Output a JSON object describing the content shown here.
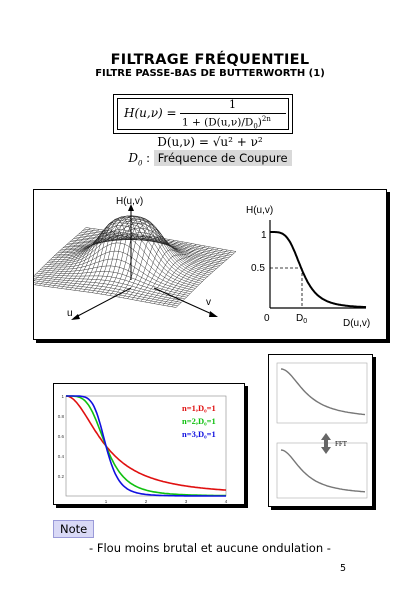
{
  "header": {
    "title": "FILTRAGE FRÉQUENTIEL",
    "subtitle": "FILTRE PASSE-BAS DE BUTTERWORTH (1)"
  },
  "formula": {
    "lhs": "H(u,ν) =",
    "numerator": "1",
    "denominator": "1 + (D(u,ν)/D",
    "den_sub": "0",
    "den_exp": "2n",
    "d_def": "D(u,ν) = √u² + ν²",
    "d0_symbol": "D",
    "d0_sub": "0",
    "d0_colon": ":",
    "d0_label": "Fréquence de Coupure"
  },
  "top_figure": {
    "surface_ylabel": "H(u,v)",
    "surface_u": "u",
    "surface_v": "v",
    "curve_ylabel": "H(u,v)",
    "curve_xlabel": "D(u,v)",
    "tick_1": "1",
    "tick_05": "0.5",
    "tick_0": "0",
    "tick_d0": "D",
    "tick_d0_sub": "0"
  },
  "chart_data": [
    {
      "type": "line",
      "xlim": [
        0,
        4
      ],
      "ylim": [
        0,
        1
      ],
      "x_ticks": [
        "1",
        "2",
        "3",
        "4"
      ],
      "y_ticks": [
        "0.2",
        "0.4",
        "0.6",
        "0.8",
        "1"
      ],
      "series": [
        {
          "name": "n=1,D₀=1",
          "color": "#e01010",
          "order": 1
        },
        {
          "name": "n=2,D₀=1",
          "color": "#10c010",
          "order": 2
        },
        {
          "name": "n=3,D₀=1",
          "color": "#1010e0",
          "order": 3
        }
      ]
    }
  ],
  "fft_figure": {
    "label": "FFT"
  },
  "note": {
    "label": "Note",
    "caption": "- Flou moins brutal et aucune ondulation -"
  },
  "page_number": "5"
}
